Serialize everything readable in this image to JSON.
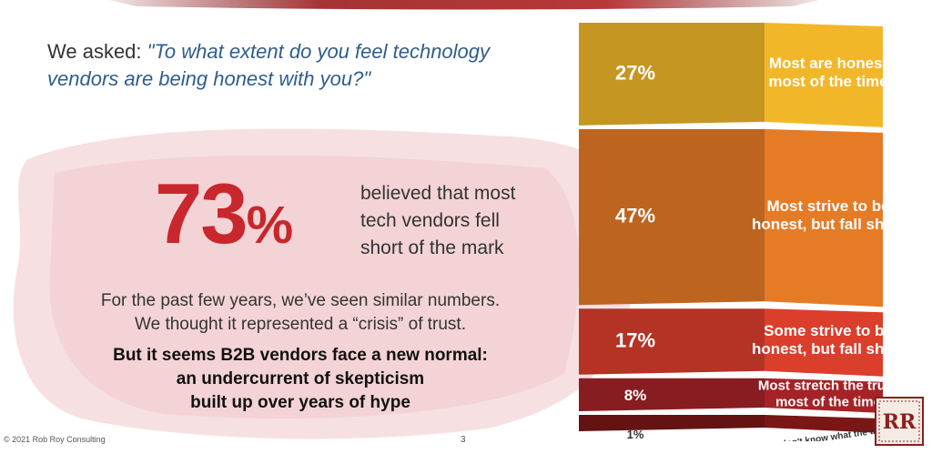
{
  "slide": {
    "question_prefix": "We asked: ",
    "question_line1": "\"To what extent do you feel technology",
    "question_line2": "vendors are being honest with you?\"",
    "stat_number": "73",
    "stat_percent": "%",
    "stat_text_lines": [
      "believed that most",
      "tech vendors fell",
      "short of the mark"
    ],
    "context_lines": [
      "For the past few years, we’ve seen similar numbers.",
      "We thought it represented a “crisis” of trust."
    ],
    "emphasis_lines": [
      "But it seems B2B vendors face a new normal:",
      "an undercurrent of skepticism",
      "built up over years of hype"
    ],
    "footer": "© 2021 Rob Roy Consulting",
    "page_number": "3",
    "logo_text": "RR"
  },
  "colors": {
    "accent_red": "#c8272d",
    "question_blue": "#2f5d8a",
    "segment_1": "#f2b729",
    "segment_2": "#e67b26",
    "segment_3": "#dc3e2c",
    "segment_4": "#a52327",
    "segment_5": "#7a1616"
  },
  "chart_data": {
    "type": "bar",
    "title": "",
    "categories": [
      "Most are honest most of the time",
      "Most strive to be honest, but fall short",
      "Some strive to be honest, but fall short",
      "Most stretch the truth most of the time",
      "Many don't know what the truth is"
    ],
    "values": [
      27,
      47,
      17,
      8,
      1
    ],
    "value_labels": [
      "27%",
      "47%",
      "17%",
      "8%",
      "1%"
    ],
    "label_lines": [
      [
        "Most are honest",
        "most of the time"
      ],
      [
        "Most strive to be",
        "honest, but fall short"
      ],
      [
        "Some strive to be",
        "honest, but fall short"
      ],
      [
        "Most stretch the truth",
        "most of the time"
      ],
      [
        "Many don't know what the truth is"
      ]
    ],
    "unit": "%"
  }
}
